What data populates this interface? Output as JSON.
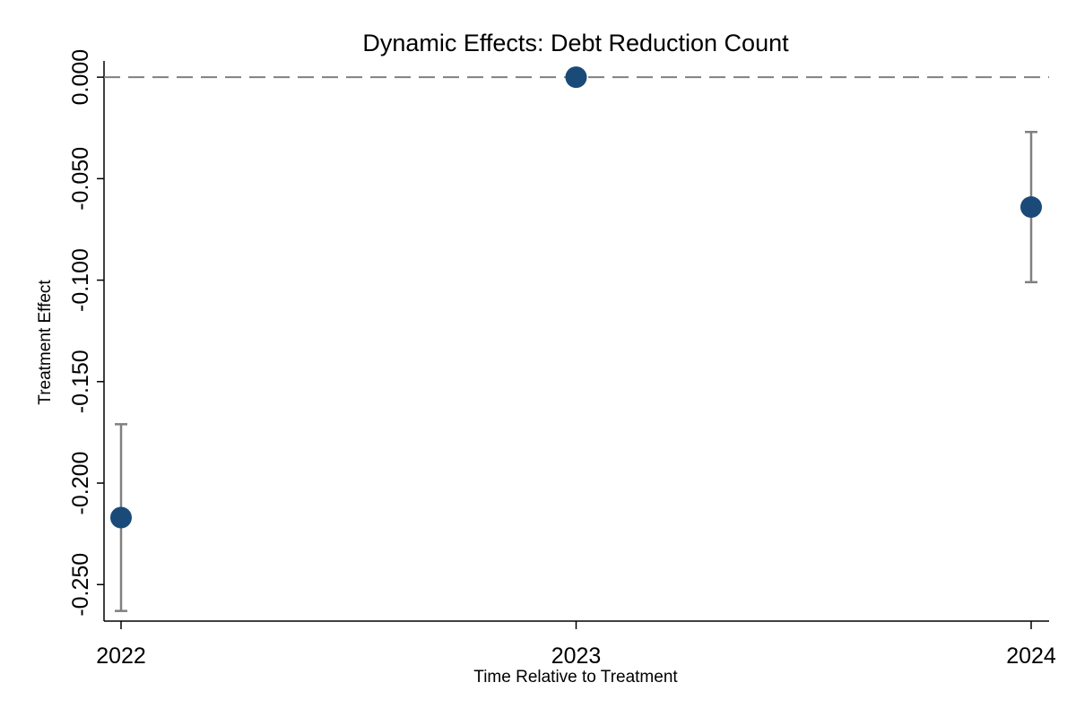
{
  "chart_data": {
    "type": "scatter",
    "title": "Dynamic Effects: Debt Reduction Count",
    "xlabel": "Time Relative to Treatment",
    "ylabel": "Treatment Effect",
    "x_ticks": [
      "2022",
      "2023",
      "2024"
    ],
    "y_ticks": [
      "0.000",
      "-0.050",
      "-0.100",
      "-0.150",
      "-0.200",
      "-0.250"
    ],
    "ylim": [
      -0.268,
      0.008
    ],
    "reference_line": {
      "y": 0,
      "style": "dashed",
      "color": "#808080"
    },
    "marker_color": "#1a4a78",
    "errorbar_color": "#808080",
    "points": [
      {
        "x": "2022",
        "y": -0.217,
        "ci_low": -0.263,
        "ci_high": -0.171
      },
      {
        "x": "2023",
        "y": 0.0,
        "ci_low": null,
        "ci_high": null
      },
      {
        "x": "2024",
        "y": -0.064,
        "ci_low": -0.101,
        "ci_high": -0.027
      }
    ]
  }
}
